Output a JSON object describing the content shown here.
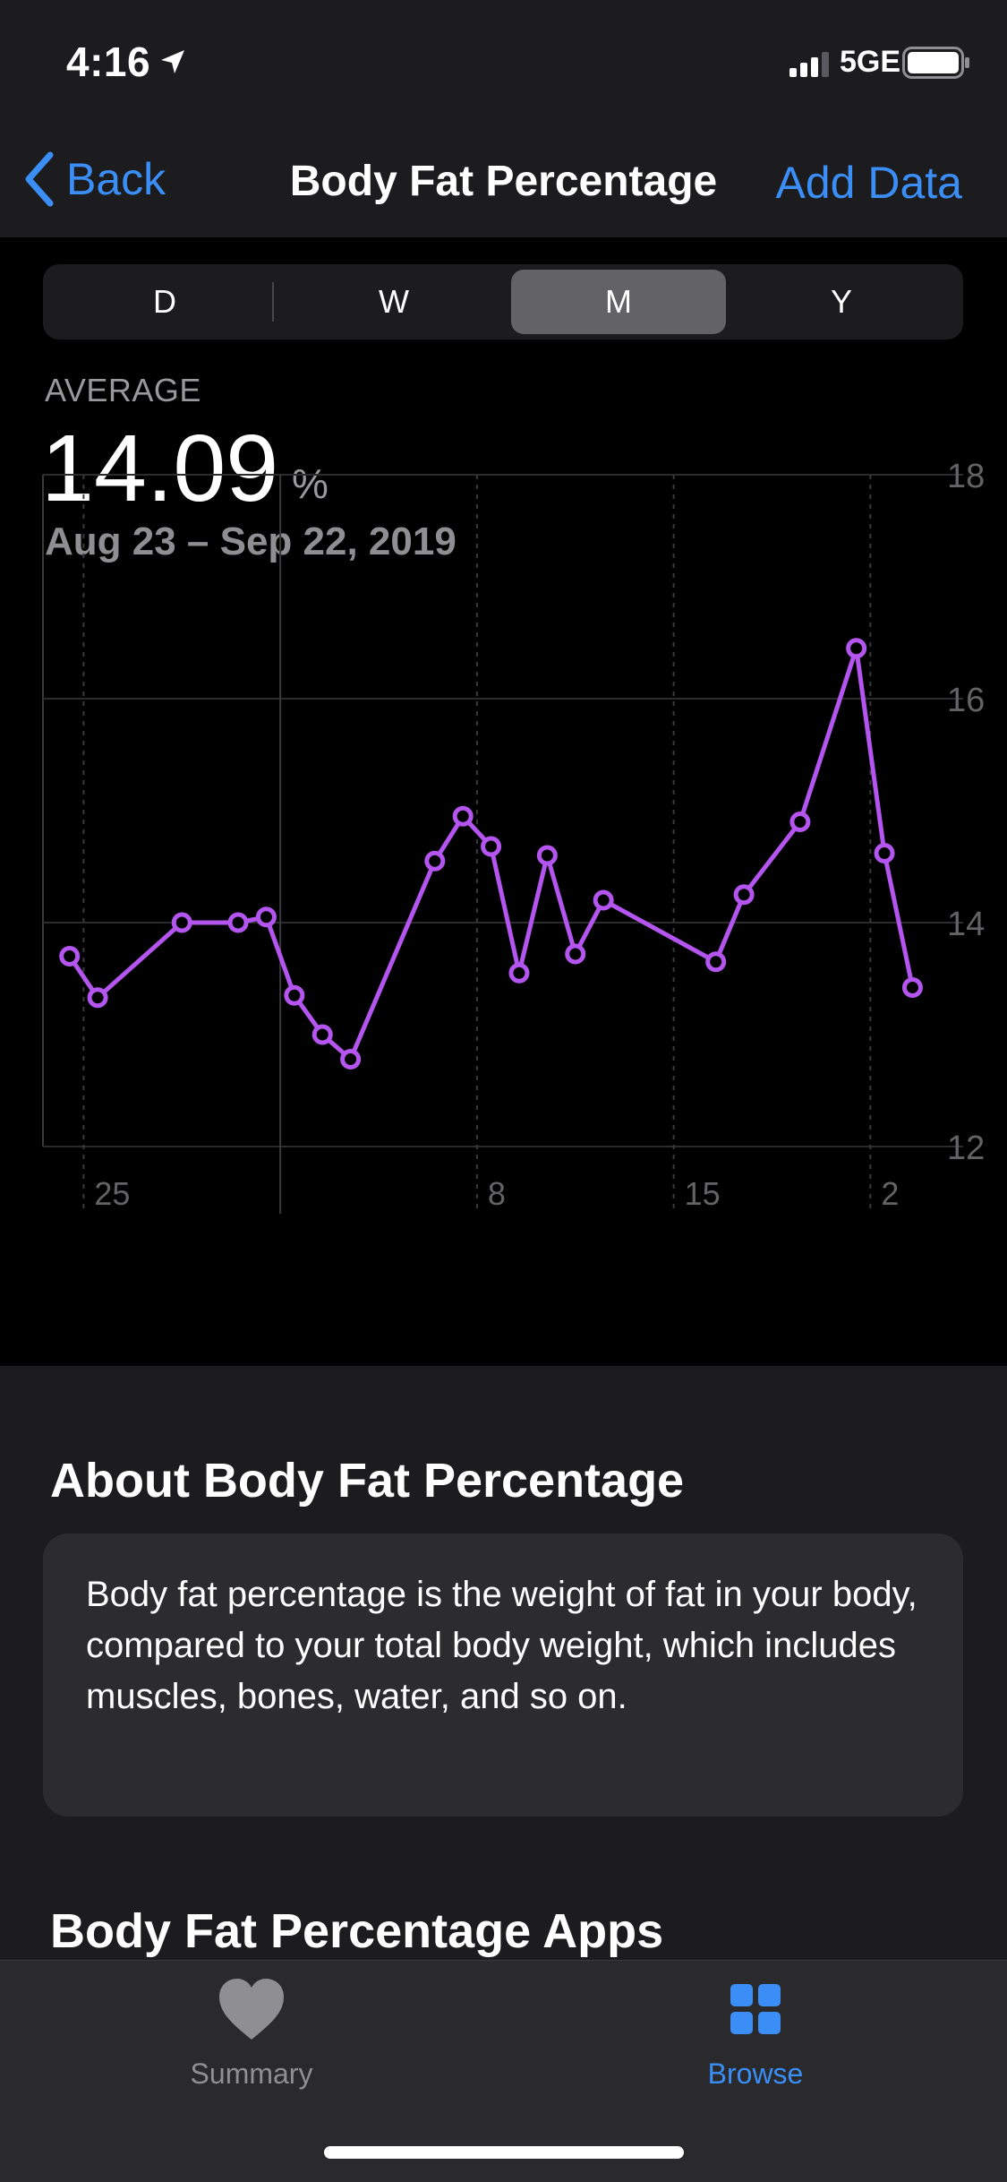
{
  "status": {
    "time": "4:16",
    "network": "5GE"
  },
  "nav": {
    "back_label": "Back",
    "title": "Body Fat Percentage",
    "action_label": "Add Data"
  },
  "segments": [
    {
      "label": "D",
      "active": false
    },
    {
      "label": "W",
      "active": false
    },
    {
      "label": "M",
      "active": true
    },
    {
      "label": "Y",
      "active": false
    }
  ],
  "summary": {
    "label": "AVERAGE",
    "value": "14.09",
    "unit": "%",
    "date_range": "Aug 23 – Sep 22, 2019"
  },
  "chart_data": {
    "type": "line",
    "ylim": [
      12,
      18
    ],
    "y_ticks": [
      "18",
      "16",
      "14",
      "12"
    ],
    "xlim": [
      0,
      30.9
    ],
    "x_tick_labels": [
      {
        "x": 1,
        "label": "25"
      },
      {
        "x": 8,
        "label": ""
      },
      {
        "x": 15,
        "label": "8"
      },
      {
        "x": 22,
        "label": "15"
      },
      {
        "x": 29,
        "label": "2"
      }
    ],
    "color": "#b455f0",
    "series": [
      {
        "points": [
          [
            0.5,
            13.7
          ],
          [
            1.5,
            13.33
          ],
          [
            4.5,
            14.0
          ],
          [
            6.5,
            14.0
          ],
          [
            7.5,
            14.05
          ],
          [
            8.5,
            13.35
          ],
          [
            9.5,
            13.0
          ],
          [
            10.5,
            12.78
          ],
          [
            13.5,
            14.55
          ],
          [
            14.5,
            14.95
          ],
          [
            15.5,
            14.68
          ],
          [
            16.5,
            13.55
          ],
          [
            17.5,
            14.6
          ],
          [
            18.5,
            13.72
          ],
          [
            19.5,
            14.2
          ],
          [
            23.5,
            13.65
          ],
          [
            24.5,
            14.25
          ],
          [
            26.5,
            14.9
          ],
          [
            28.5,
            16.45
          ],
          [
            29.5,
            14.62
          ],
          [
            30.5,
            13.42
          ]
        ]
      }
    ]
  },
  "about": {
    "title": "About Body Fat Percentage",
    "text": "Body fat percentage is the weight of fat in your body, compared to your total body weight, which includes muscles, bones, water, and so on."
  },
  "apps_title": "Body Fat Percentage Apps",
  "tabs": [
    {
      "label": "Summary",
      "icon": "heart-icon",
      "active": false
    },
    {
      "label": "Browse",
      "icon": "grid-icon",
      "active": true
    }
  ],
  "colors": {
    "accent": "#3a8ef6",
    "line": "#b455f0",
    "background": "#000000"
  }
}
